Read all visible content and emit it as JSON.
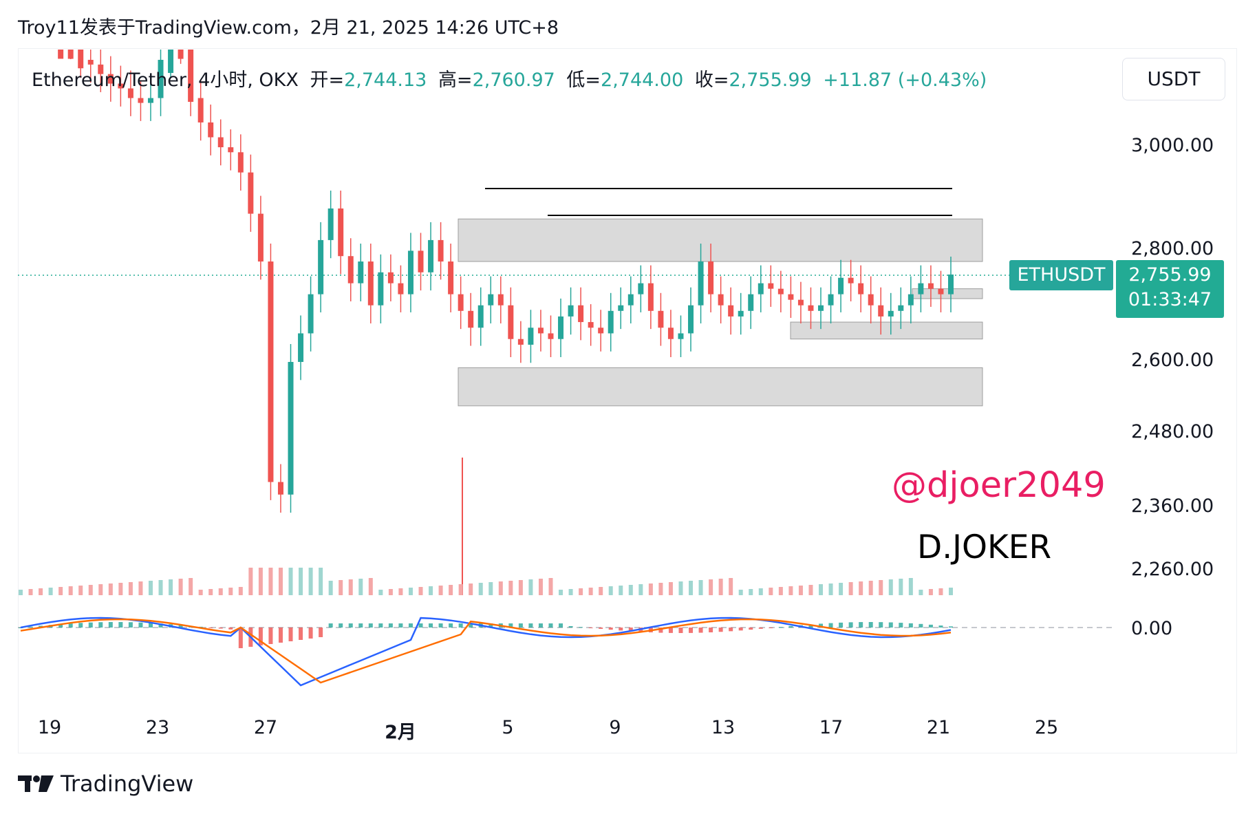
{
  "header": {
    "publisher_line": "Troy11发表于TradingView.com，2月 21, 2025 14:26 UTC+8"
  },
  "legend": {
    "symbol": "Ethereum/Tether, 4小时, OKX",
    "open_label": "开=",
    "open": "2,744.13",
    "high_label": "高=",
    "high": "2,760.97",
    "low_label": "低=",
    "low": "2,744.00",
    "close_label": "收=",
    "close": "2,755.99",
    "change": "+11.87 (+0.43%)"
  },
  "currency": "USDT",
  "price_axis": {
    "ticks": [
      "3,000.00",
      "2,800.00",
      "2,600.00",
      "2,480.00",
      "2,360.00",
      "2,260.00"
    ],
    "macd_zero": "0.00"
  },
  "last_price": {
    "symbol": "ETHUSDT",
    "price": "2,755.99",
    "countdown": "01:33:47"
  },
  "time_axis": {
    "ticks": [
      "19",
      "23",
      "27",
      "2月",
      "5",
      "9",
      "13",
      "17",
      "21",
      "25"
    ]
  },
  "watermarks": {
    "handle": "@djoer2049",
    "name": "D.JOKER"
  },
  "footer": {
    "brand": "TradingView"
  },
  "colors": {
    "up": "#26a69a",
    "down": "#ef5350",
    "macd_line": "#2962ff",
    "signal_line": "#ff6d00",
    "zone_fill": "#d9d9d9",
    "watermark": "#e91e63"
  },
  "chart_data": {
    "type": "candlestick",
    "symbol": "ETHUSDT",
    "timeframe": "4h",
    "x_ticks": [
      "19",
      "23",
      "27",
      "2月",
      "5",
      "9",
      "13",
      "17",
      "21",
      "25"
    ],
    "price_scale": "log",
    "candles_close_approx": [
      3320,
      3300,
      3250,
      3260,
      3240,
      3220,
      3180,
      3170,
      3150,
      3130,
      3120,
      3100,
      3090,
      3100,
      3180,
      3230,
      3210,
      3100,
      3050,
      3020,
      3000,
      2990,
      2950,
      2870,
      2780,
      2400,
      2380,
      2600,
      2650,
      2720,
      2820,
      2880,
      2790,
      2740,
      2780,
      2700,
      2760,
      2740,
      2720,
      2800,
      2760,
      2820,
      2780,
      2720,
      2690,
      2660,
      2700,
      2720,
      2700,
      2640,
      2630,
      2660,
      2650,
      2640,
      2680,
      2700,
      2670,
      2660,
      2650,
      2690,
      2700,
      2720,
      2740,
      2690,
      2660,
      2640,
      2650,
      2700,
      2780,
      2720,
      2700,
      2680,
      2690,
      2720,
      2740,
      2730,
      2720,
      2710,
      2700,
      2690,
      2700,
      2720,
      2750,
      2740,
      2720,
      2700,
      2680,
      2690,
      2700,
      2720,
      2740,
      2730,
      2720,
      2756
    ],
    "horizontal_lines": [
      2895,
      2870
    ],
    "zones": [
      {
        "from": 2780,
        "to": 2860
      },
      {
        "from": 2712,
        "to": 2730
      },
      {
        "from": 2640,
        "to": 2670
      },
      {
        "from": 2525,
        "to": 2590
      }
    ],
    "macd": {
      "zero": 0,
      "histogram_trend": "negative spike early Feb then positive"
    }
  }
}
